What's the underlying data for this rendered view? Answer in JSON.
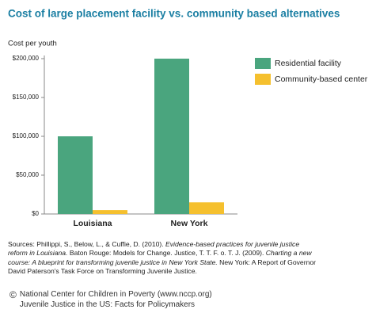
{
  "chart_data": {
    "type": "bar",
    "title": "Cost of large placement facility vs. community based alternatives",
    "y_label": "Cost per youth",
    "categories": [
      "Louisiana",
      "New York"
    ],
    "series": [
      {
        "name": "Residential facility",
        "color": "#4aa57e",
        "values": [
          100000,
          200000
        ]
      },
      {
        "name": "Community-based center",
        "color": "#f5c02e",
        "values": [
          5000,
          15000
        ]
      }
    ],
    "ylim": [
      0,
      200000
    ],
    "yticks": [
      {
        "value": 0,
        "label": "$0"
      },
      {
        "value": 50000,
        "label": "$50,000"
      },
      {
        "value": 100000,
        "label": "$100,000"
      },
      {
        "value": 150000,
        "label": "$150,000"
      },
      {
        "value": 200000,
        "label": "$200,000"
      }
    ],
    "legend": "right"
  },
  "sources": [
    "Sources: Phillippi, S., Below, L., & Cuffie, D. (2010). ",
    "Evidence-based practices for juvenile justice reform in Louisiana.",
    " Baton Rouge: Models for Change. Justice, T. T. F. o. T. J. (2009). ",
    "Charting a new course: A blueprint for transforming juvenile justice in New York State.",
    " New York: A Report of Governor David Paterson's Task Force on Transforming Juvenile Justice."
  ],
  "footer": {
    "symbol": "©",
    "lines": [
      "National Center for Children in Poverty (www.nccp.org)",
      "Juvenile Justice in the US: Facts for Policymakers"
    ]
  }
}
